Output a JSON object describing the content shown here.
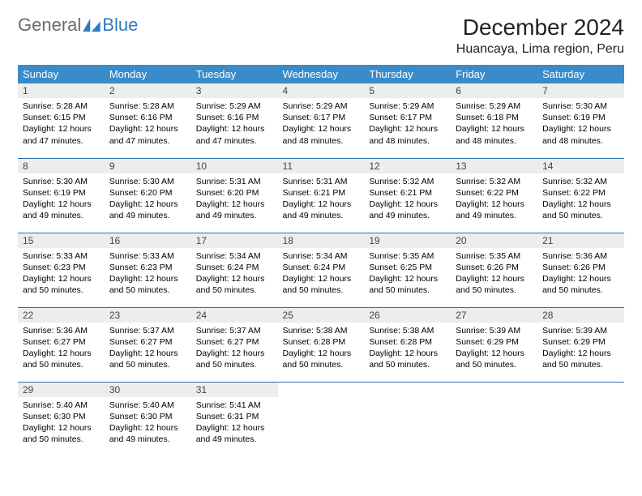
{
  "logo": {
    "part1": "General",
    "part2": "Blue"
  },
  "title": "December 2024",
  "location": "Huancaya, Lima region, Peru",
  "colors": {
    "header_bg": "#3a8bc9",
    "header_text": "#ffffff",
    "daynum_bg": "#eceded",
    "row_border": "#2f6fa6",
    "logo_gray": "#6b6b6b",
    "logo_blue": "#2f7bbf"
  },
  "weekdays": [
    "Sunday",
    "Monday",
    "Tuesday",
    "Wednesday",
    "Thursday",
    "Friday",
    "Saturday"
  ],
  "days": [
    {
      "n": "1",
      "sr": "5:28 AM",
      "ss": "6:15 PM",
      "dl": "12 hours and 47 minutes."
    },
    {
      "n": "2",
      "sr": "5:28 AM",
      "ss": "6:16 PM",
      "dl": "12 hours and 47 minutes."
    },
    {
      "n": "3",
      "sr": "5:29 AM",
      "ss": "6:16 PM",
      "dl": "12 hours and 47 minutes."
    },
    {
      "n": "4",
      "sr": "5:29 AM",
      "ss": "6:17 PM",
      "dl": "12 hours and 48 minutes."
    },
    {
      "n": "5",
      "sr": "5:29 AM",
      "ss": "6:17 PM",
      "dl": "12 hours and 48 minutes."
    },
    {
      "n": "6",
      "sr": "5:29 AM",
      "ss": "6:18 PM",
      "dl": "12 hours and 48 minutes."
    },
    {
      "n": "7",
      "sr": "5:30 AM",
      "ss": "6:19 PM",
      "dl": "12 hours and 48 minutes."
    },
    {
      "n": "8",
      "sr": "5:30 AM",
      "ss": "6:19 PM",
      "dl": "12 hours and 49 minutes."
    },
    {
      "n": "9",
      "sr": "5:30 AM",
      "ss": "6:20 PM",
      "dl": "12 hours and 49 minutes."
    },
    {
      "n": "10",
      "sr": "5:31 AM",
      "ss": "6:20 PM",
      "dl": "12 hours and 49 minutes."
    },
    {
      "n": "11",
      "sr": "5:31 AM",
      "ss": "6:21 PM",
      "dl": "12 hours and 49 minutes."
    },
    {
      "n": "12",
      "sr": "5:32 AM",
      "ss": "6:21 PM",
      "dl": "12 hours and 49 minutes."
    },
    {
      "n": "13",
      "sr": "5:32 AM",
      "ss": "6:22 PM",
      "dl": "12 hours and 49 minutes."
    },
    {
      "n": "14",
      "sr": "5:32 AM",
      "ss": "6:22 PM",
      "dl": "12 hours and 50 minutes."
    },
    {
      "n": "15",
      "sr": "5:33 AM",
      "ss": "6:23 PM",
      "dl": "12 hours and 50 minutes."
    },
    {
      "n": "16",
      "sr": "5:33 AM",
      "ss": "6:23 PM",
      "dl": "12 hours and 50 minutes."
    },
    {
      "n": "17",
      "sr": "5:34 AM",
      "ss": "6:24 PM",
      "dl": "12 hours and 50 minutes."
    },
    {
      "n": "18",
      "sr": "5:34 AM",
      "ss": "6:24 PM",
      "dl": "12 hours and 50 minutes."
    },
    {
      "n": "19",
      "sr": "5:35 AM",
      "ss": "6:25 PM",
      "dl": "12 hours and 50 minutes."
    },
    {
      "n": "20",
      "sr": "5:35 AM",
      "ss": "6:26 PM",
      "dl": "12 hours and 50 minutes."
    },
    {
      "n": "21",
      "sr": "5:36 AM",
      "ss": "6:26 PM",
      "dl": "12 hours and 50 minutes."
    },
    {
      "n": "22",
      "sr": "5:36 AM",
      "ss": "6:27 PM",
      "dl": "12 hours and 50 minutes."
    },
    {
      "n": "23",
      "sr": "5:37 AM",
      "ss": "6:27 PM",
      "dl": "12 hours and 50 minutes."
    },
    {
      "n": "24",
      "sr": "5:37 AM",
      "ss": "6:27 PM",
      "dl": "12 hours and 50 minutes."
    },
    {
      "n": "25",
      "sr": "5:38 AM",
      "ss": "6:28 PM",
      "dl": "12 hours and 50 minutes."
    },
    {
      "n": "26",
      "sr": "5:38 AM",
      "ss": "6:28 PM",
      "dl": "12 hours and 50 minutes."
    },
    {
      "n": "27",
      "sr": "5:39 AM",
      "ss": "6:29 PM",
      "dl": "12 hours and 50 minutes."
    },
    {
      "n": "28",
      "sr": "5:39 AM",
      "ss": "6:29 PM",
      "dl": "12 hours and 50 minutes."
    },
    {
      "n": "29",
      "sr": "5:40 AM",
      "ss": "6:30 PM",
      "dl": "12 hours and 50 minutes."
    },
    {
      "n": "30",
      "sr": "5:40 AM",
      "ss": "6:30 PM",
      "dl": "12 hours and 49 minutes."
    },
    {
      "n": "31",
      "sr": "5:41 AM",
      "ss": "6:31 PM",
      "dl": "12 hours and 49 minutes."
    }
  ],
  "labels": {
    "sunrise": "Sunrise:",
    "sunset": "Sunset:",
    "daylight": "Daylight:"
  }
}
